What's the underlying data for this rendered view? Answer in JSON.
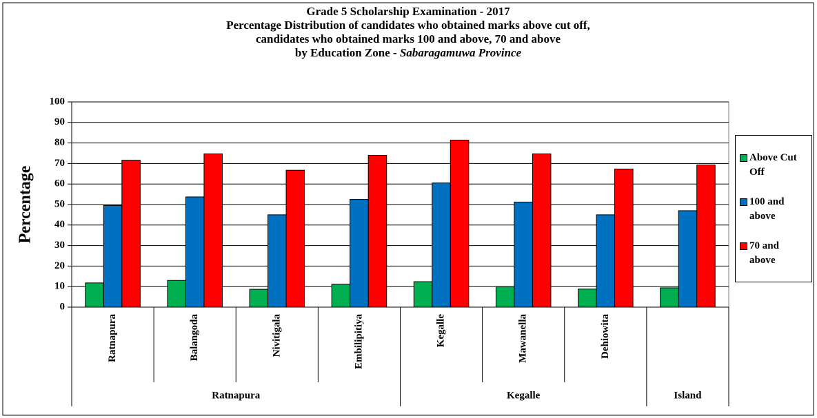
{
  "chart_data": {
    "type": "bar",
    "title_lines": [
      "Grade 5 Scholarship Examination - 2017",
      "Percentage Distribution of candidates who obtained marks above cut off,",
      "candidates who obtained marks 100 and above, 70 and above",
      "by Education Zone - "
    ],
    "title_emphasis": "Sabaragamuwa Province",
    "y_label": "Percentage",
    "categories": [
      "Ratnapura",
      "Balangoda",
      "Nivitigala",
      "Embilipitiya",
      "Kegalle",
      "Mawanella",
      "Dehiowita",
      null
    ],
    "groups": [
      "Ratnapura",
      "Ratnapura",
      "Ratnapura",
      "Ratnapura",
      "Kegalle",
      "Kegalle",
      "Kegalle",
      "Island"
    ],
    "series": [
      {
        "name": "Above Cut Off",
        "color": "#00b050",
        "values": [
          11.8,
          13,
          8.7,
          11.2,
          12.4,
          10,
          8.8,
          9.4
        ]
      },
      {
        "name": "100 and above",
        "color": "#0070c0",
        "values": [
          49.5,
          53.7,
          45,
          52.5,
          60.5,
          51.2,
          45,
          47
        ]
      },
      {
        "name": "70 and above",
        "color": "#ff0000",
        "values": [
          71.6,
          74.7,
          66.7,
          74,
          81.4,
          74.7,
          67.3,
          69.3
        ]
      }
    ],
    "ylim": [
      0,
      100
    ],
    "yticks": [
      0,
      10,
      20,
      30,
      40,
      50,
      60,
      70,
      80,
      90,
      100
    ],
    "grid": true
  }
}
